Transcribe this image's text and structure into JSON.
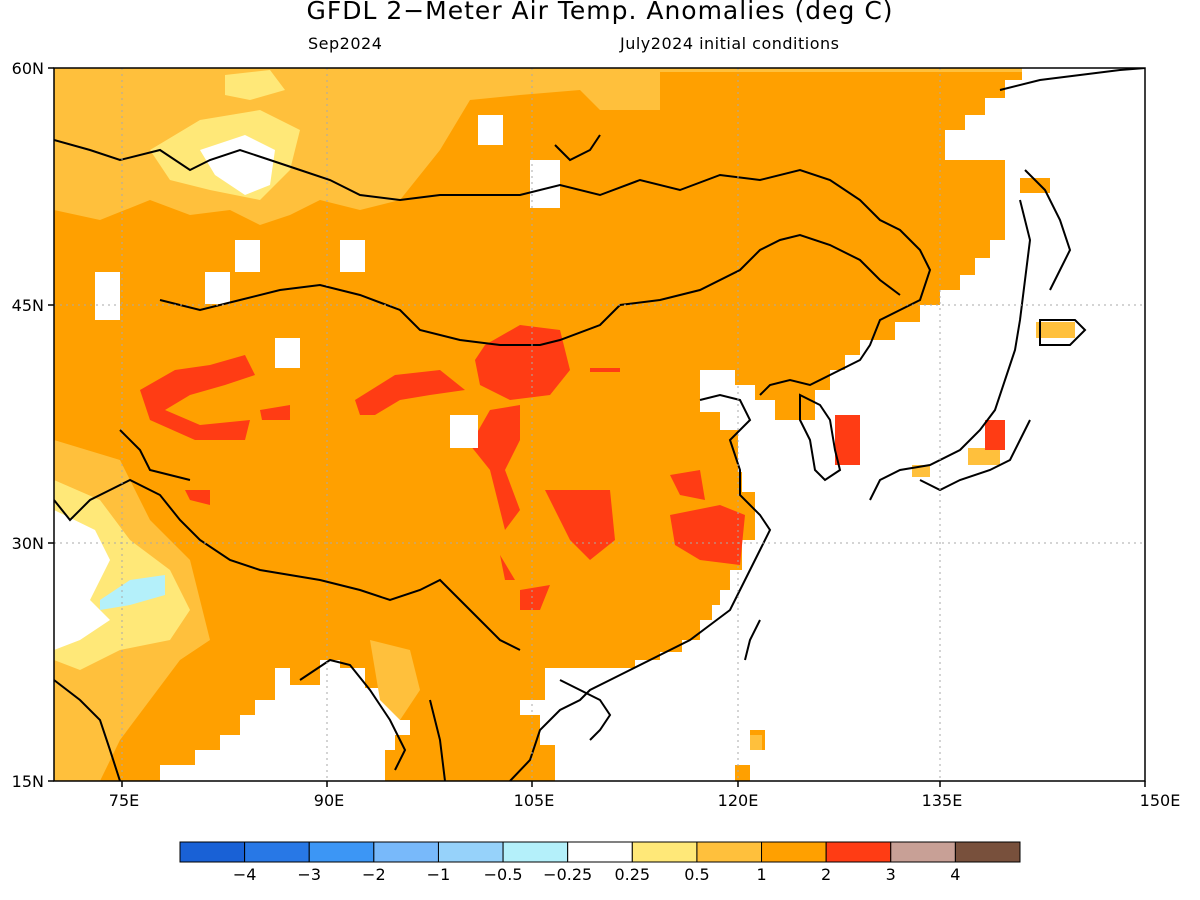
{
  "title": "GFDL 2−Meter Air Temp. Anomalies (deg C)",
  "subtitle_left": "Sep2024",
  "subtitle_right": "July2024 initial conditions",
  "map": {
    "lon_range": [
      70,
      150
    ],
    "lat_range": [
      15,
      60
    ],
    "lat_ticks": [
      {
        "value": 60,
        "label": "60N"
      },
      {
        "value": 45,
        "label": "45N"
      },
      {
        "value": 30,
        "label": "30N"
      },
      {
        "value": 15,
        "label": "15N"
      }
    ],
    "lon_ticks": [
      {
        "value": 75,
        "label": "75E"
      },
      {
        "value": 90,
        "label": "90E"
      },
      {
        "value": 105,
        "label": "105E"
      },
      {
        "value": 120,
        "label": "120E"
      },
      {
        "value": 135,
        "label": "135E"
      },
      {
        "value": 150,
        "label": "150E"
      }
    ],
    "background_anomaly_color": "#fca30a"
  },
  "colorbar": {
    "bins": [
      {
        "color": "#1961d6"
      },
      {
        "color": "#2878e6"
      },
      {
        "color": "#3c96f5"
      },
      {
        "color": "#78b9fa"
      },
      {
        "color": "#96d2fa"
      },
      {
        "color": "#b4f0fa"
      },
      {
        "color": "#ffffff"
      },
      {
        "color": "#ffe878"
      },
      {
        "color": "#ffc03c"
      },
      {
        "color": "#ffa000"
      },
      {
        "color": "#ff3c14"
      },
      {
        "color": "#c8a096"
      },
      {
        "color": "#78503c"
      }
    ],
    "labels": [
      "−4",
      "−3",
      "−2",
      "−1",
      "−0.5",
      "−0.25",
      "0.25",
      "0.5",
      "1",
      "2",
      "3",
      "4"
    ]
  }
}
